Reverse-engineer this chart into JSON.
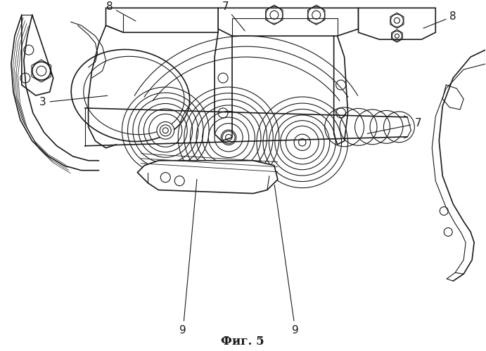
{
  "title": "Фиг. 5",
  "title_fontsize": 12,
  "background_color": "#ffffff",
  "line_color": "#1a1a1a",
  "gray_light": "#d0d0d0",
  "gray_mid": "#a0a0a0",
  "label_fontsize": 11,
  "fig_width": 6.91,
  "fig_height": 5.0,
  "dpi": 100
}
